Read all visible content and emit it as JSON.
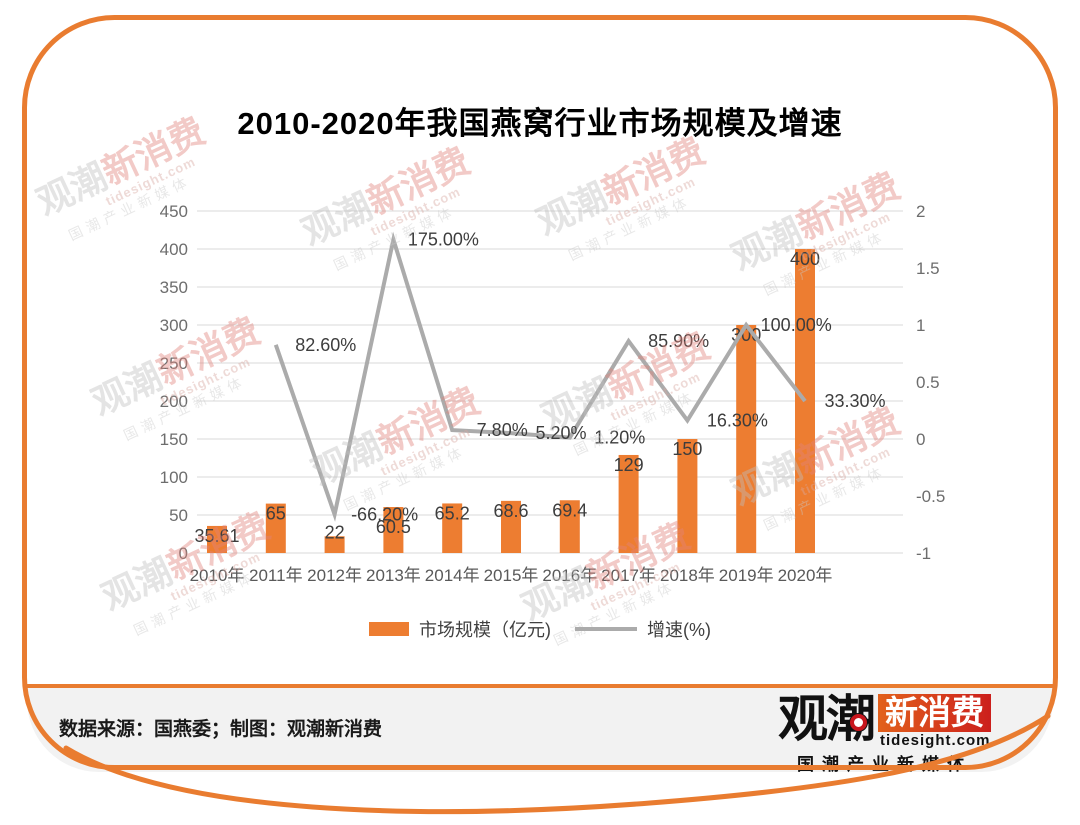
{
  "colors": {
    "accent_orange": "#E97C30",
    "bar_orange": "#ED7D31",
    "line_gray": "#ABABAB",
    "footer_bg": "#F2F2F2",
    "gridline_gray": "#D8D8D8",
    "watermark_red": "#E2837B"
  },
  "page": {
    "footer": {
      "source_text": "数据来源：国燕委；制图：观潮新消费",
      "logo": {
        "guanchao": "观潮",
        "xinxiaofei": "新消费",
        "domain": "tidesight.com",
        "tagline": "国潮产业新媒体"
      }
    },
    "watermark": {
      "brand_gray": "观潮",
      "brand_red": "新消费",
      "domain": "tidesight.com",
      "tagline": "国潮产业新媒体"
    }
  },
  "chart_data": {
    "type": "bar",
    "subtype": "bar-line-combo",
    "title": "2010-2020年我国燕窝行业市场规模及增速",
    "categories": [
      "2010年",
      "2011年",
      "2012年",
      "2013年",
      "2014年",
      "2015年",
      "2016年",
      "2017年",
      "2018年",
      "2019年",
      "2020年"
    ],
    "series": [
      {
        "name": "市场规模（亿元)",
        "type": "bar",
        "axis": "left",
        "color": "#ED7D31",
        "values": [
          35.61,
          65,
          22,
          60.5,
          65.2,
          68.6,
          69.4,
          129,
          150,
          300,
          400
        ],
        "labels": [
          "35.61",
          "65",
          "22",
          "60.5",
          "65.2",
          "68.6",
          "69.4",
          "129",
          "150",
          "300",
          "400"
        ]
      },
      {
        "name": "增速(%)",
        "type": "line",
        "axis": "right",
        "color": "#ABABAB",
        "values_pct": [
          null,
          82.6,
          -66.2,
          175.0,
          7.8,
          5.2,
          1.2,
          85.9,
          16.3,
          100.0,
          33.3
        ],
        "labels": [
          null,
          "82.60%",
          "-66.20%",
          "175.00%",
          "7.80%",
          "5.20%",
          "1.20%",
          "85.90%",
          "16.30%",
          "100.00%",
          "33.30%"
        ]
      }
    ],
    "left_axis": {
      "min": 0,
      "max": 450,
      "ticks": [
        450,
        400,
        350,
        300,
        250,
        200,
        150,
        100,
        50,
        0
      ]
    },
    "right_axis": {
      "min": -1,
      "max": 2,
      "ticks": [
        2,
        1.5,
        1,
        0.5,
        0,
        -0.5,
        -1
      ]
    },
    "grid": "horizontal",
    "legend_position": "bottom"
  }
}
